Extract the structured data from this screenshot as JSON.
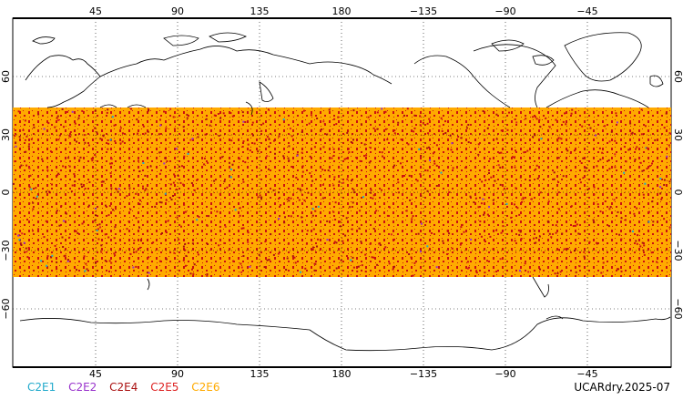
{
  "map": {
    "projection": "equirectangular",
    "longitude_ticks_top": [
      "45",
      "90",
      "135",
      "180",
      "−135",
      "−90",
      "−45"
    ],
    "longitude_ticks_bottom": [
      "45",
      "90",
      "135",
      "180",
      "−135",
      "−90",
      "−45"
    ],
    "latitude_ticks_left": [
      "60",
      "30",
      "0",
      "−30",
      "−60"
    ],
    "latitude_ticks_right": [
      "60",
      "30",
      "0",
      "−30",
      "−60"
    ],
    "coverage_band_degrees": [
      -45,
      45
    ],
    "colors": {
      "background": "#ffffff",
      "coastline": "#000000",
      "grid": "#000000",
      "occultation_main": "#ffaa00",
      "occultation_secondary": "#cc1111"
    }
  },
  "legend": {
    "items": [
      {
        "label": "C2E1",
        "color": "#22aacc"
      },
      {
        "label": "C2E2",
        "color": "#9933cc"
      },
      {
        "label": "C2E4",
        "color": "#aa1111"
      },
      {
        "label": "C2E5",
        "color": "#dd2222"
      },
      {
        "label": "C2E6",
        "color": "#ffaa00"
      }
    ]
  },
  "product_label": "UCARdry.2025-07"
}
